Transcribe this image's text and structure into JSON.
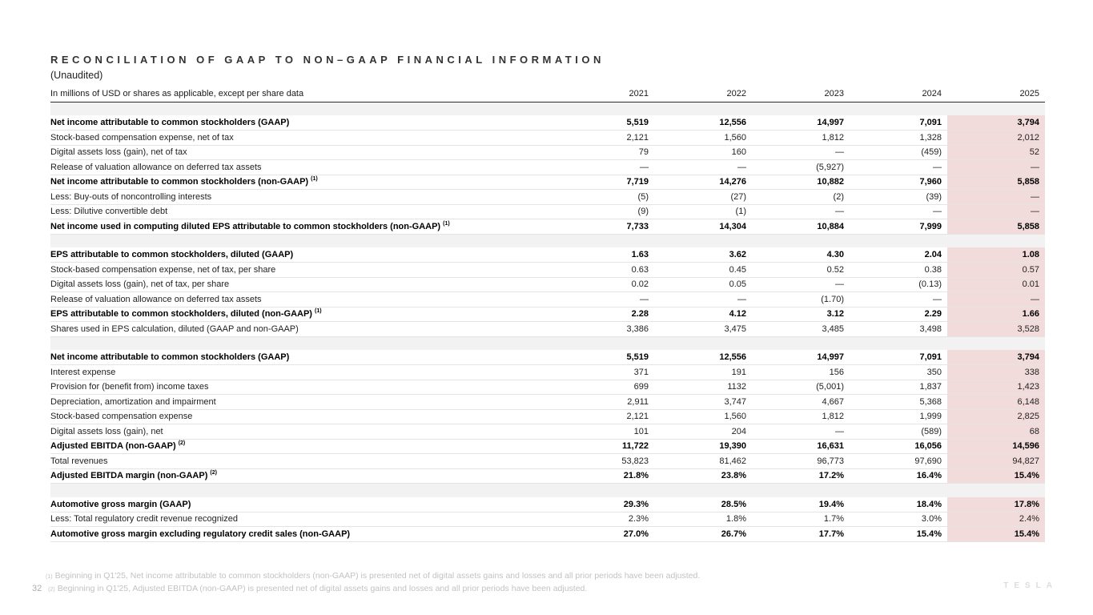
{
  "slide": {
    "title": "RECONCILIATION OF GAAP TO NON–GAAP FINANCIAL INFORMATION",
    "subtitle": "(Unaudited)",
    "page_number": "32",
    "watermark": "TESLA"
  },
  "table": {
    "units_label": "In millions of USD or shares as applicable, except per share data",
    "years": [
      "2021",
      "2022",
      "2023",
      "2024",
      "2025"
    ],
    "highlight_color": "#f2dcdb",
    "band_color": "#f2f2f2",
    "sections": [
      {
        "rows": [
          {
            "label": "Net income attributable to common stockholders (GAAP)",
            "bold": true,
            "sup": "",
            "values": [
              "5,519",
              "12,556",
              "14,997",
              "7,091",
              "3,794"
            ]
          },
          {
            "label": "Stock-based compensation expense, net of tax",
            "bold": false,
            "sup": "",
            "values": [
              "2,121",
              "1,560",
              "1,812",
              "1,328",
              "2,012"
            ]
          },
          {
            "label": "Digital assets loss (gain), net of tax",
            "bold": false,
            "sup": "",
            "values": [
              "79",
              "160",
              "—",
              "(459)",
              "52"
            ]
          },
          {
            "label": "Release of valuation allowance on deferred tax assets",
            "bold": false,
            "sup": "",
            "values": [
              "—",
              "—",
              "(5,927)",
              "—",
              "—"
            ]
          },
          {
            "label": "Net income attributable to common stockholders (non-GAAP)",
            "bold": true,
            "sup": "(1)",
            "values": [
              "7,719",
              "14,276",
              "10,882",
              "7,960",
              "5,858"
            ]
          },
          {
            "label": "Less: Buy-outs of noncontrolling interests",
            "bold": false,
            "sup": "",
            "values": [
              "(5)",
              "(27)",
              "(2)",
              "(39)",
              "—"
            ]
          },
          {
            "label": "Less: Dilutive convertible debt",
            "bold": false,
            "sup": "",
            "values": [
              "(9)",
              "(1)",
              "—",
              "—",
              "—"
            ]
          },
          {
            "label": "Net income used in computing diluted EPS attributable to common stockholders (non-GAAP)",
            "bold": true,
            "sup": "(1)",
            "values": [
              "7,733",
              "14,304",
              "10,884",
              "7,999",
              "5,858"
            ]
          }
        ]
      },
      {
        "rows": [
          {
            "label": "EPS attributable to common stockholders, diluted (GAAP)",
            "bold": true,
            "sup": "",
            "values": [
              "1.63",
              "3.62",
              "4.30",
              "2.04",
              "1.08"
            ]
          },
          {
            "label": "Stock-based compensation expense, net of tax, per share",
            "bold": false,
            "sup": "",
            "values": [
              "0.63",
              "0.45",
              "0.52",
              "0.38",
              "0.57"
            ]
          },
          {
            "label": "Digital assets loss (gain), net of tax, per share",
            "bold": false,
            "sup": "",
            "values": [
              "0.02",
              "0.05",
              "—",
              "(0.13)",
              "0.01"
            ]
          },
          {
            "label": "Release of valuation allowance on deferred tax assets",
            "bold": false,
            "sup": "",
            "values": [
              "—",
              "—",
              "(1.70)",
              "—",
              "—"
            ]
          },
          {
            "label": "EPS attributable to common stockholders, diluted (non-GAAP)",
            "bold": true,
            "sup": "(1)",
            "values": [
              "2.28",
              "4.12",
              "3.12",
              "2.29",
              "1.66"
            ]
          },
          {
            "label": "Shares used in EPS calculation, diluted (GAAP and non-GAAP)",
            "bold": false,
            "sup": "",
            "values": [
              "3,386",
              "3,475",
              "3,485",
              "3,498",
              "3,528"
            ]
          }
        ]
      },
      {
        "rows": [
          {
            "label": "Net income attributable to common stockholders (GAAP)",
            "bold": true,
            "sup": "",
            "values": [
              "5,519",
              "12,556",
              "14,997",
              "7,091",
              "3,794"
            ]
          },
          {
            "label": "Interest expense",
            "bold": false,
            "sup": "",
            "values": [
              "371",
              "191",
              "156",
              "350",
              "338"
            ]
          },
          {
            "label": "Provision for (benefit from) income taxes",
            "bold": false,
            "sup": "",
            "values": [
              "699",
              "1132",
              "(5,001)",
              "1,837",
              "1,423"
            ]
          },
          {
            "label": "Depreciation, amortization and impairment",
            "bold": false,
            "sup": "",
            "values": [
              "2,911",
              "3,747",
              "4,667",
              "5,368",
              "6,148"
            ]
          },
          {
            "label": "Stock-based compensation expense",
            "bold": false,
            "sup": "",
            "values": [
              "2,121",
              "1,560",
              "1,812",
              "1,999",
              "2,825"
            ]
          },
          {
            "label": "Digital assets loss (gain), net",
            "bold": false,
            "sup": "",
            "values": [
              "101",
              "204",
              "—",
              "(589)",
              "68"
            ]
          },
          {
            "label": "Adjusted EBITDA (non-GAAP)",
            "bold": true,
            "sup": "(2)",
            "values": [
              "11,722",
              "19,390",
              "16,631",
              "16,056",
              "14,596"
            ]
          },
          {
            "label": "Total revenues",
            "bold": false,
            "sup": "",
            "values": [
              "53,823",
              "81,462",
              "96,773",
              "97,690",
              "94,827"
            ]
          },
          {
            "label": "Adjusted EBITDA margin (non-GAAP)",
            "bold": true,
            "sup": "(2)",
            "values": [
              "21.8%",
              "23.8%",
              "17.2%",
              "16.4%",
              "15.4%"
            ]
          }
        ]
      },
      {
        "rows": [
          {
            "label": "Automotive gross margin (GAAP)",
            "bold": true,
            "sup": "",
            "values": [
              "29.3%",
              "28.5%",
              "19.4%",
              "18.4%",
              "17.8%"
            ]
          },
          {
            "label": "Less: Total regulatory credit revenue recognized",
            "bold": false,
            "sup": "",
            "values": [
              "2.3%",
              "1.8%",
              "1.7%",
              "3.0%",
              "2.4%"
            ]
          },
          {
            "label": "Automotive gross margin excluding regulatory credit sales (non-GAAP)",
            "bold": true,
            "sup": "",
            "values": [
              "27.0%",
              "26.7%",
              "17.7%",
              "15.4%",
              "15.4%"
            ]
          }
        ]
      }
    ]
  },
  "footnotes": [
    {
      "sup": "(1)",
      "text": "Beginning in Q1'25, Net income attributable to common stockholders (non-GAAP) is presented net of digital assets gains and losses and all prior periods have been adjusted."
    },
    {
      "sup": "(2)",
      "text": "Beginning in Q1'25, Adjusted EBITDA (non-GAAP) is presented net of digital assets gains and losses and all prior periods have been adjusted."
    }
  ]
}
